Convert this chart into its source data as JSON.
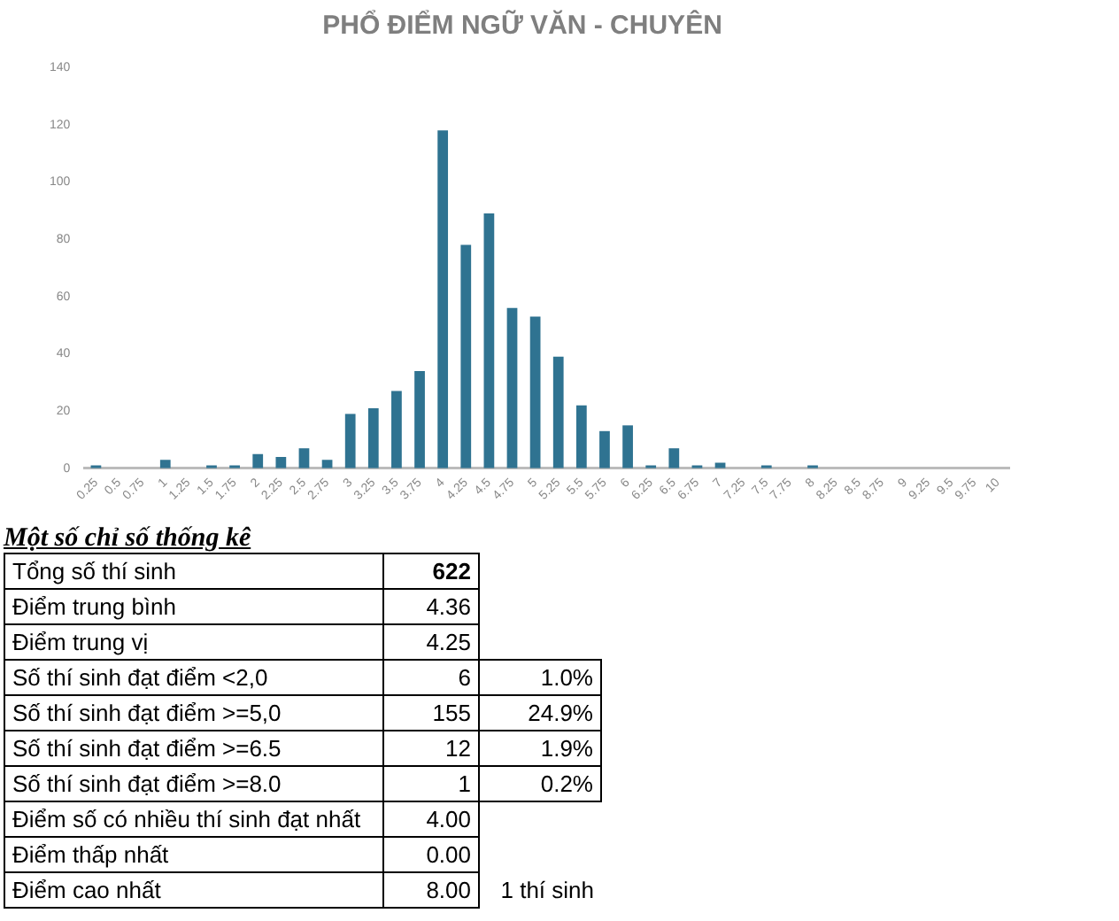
{
  "chart_data": [
    {
      "type": "bar",
      "title": "PHỔ ĐIỂM NGỮ VĂN - CHUYÊN",
      "categories": [
        "0.25",
        "0.5",
        "0.75",
        "1",
        "1.25",
        "1.5",
        "1.75",
        "2",
        "2.25",
        "2.5",
        "2.75",
        "3",
        "3.25",
        "3.5",
        "3.75",
        "4",
        "4.25",
        "4.5",
        "4.75",
        "5",
        "5.25",
        "5.5",
        "5.75",
        "6",
        "6.25",
        "6.5",
        "6.75",
        "7",
        "7.25",
        "7.5",
        "7.75",
        "8",
        "8.25",
        "8.5",
        "8.75",
        "9",
        "9.25",
        "9.5",
        "9.75",
        "10"
      ],
      "values": [
        1,
        0,
        0,
        3,
        0,
        1,
        1,
        5,
        4,
        7,
        3,
        19,
        21,
        27,
        34,
        118,
        78,
        89,
        56,
        53,
        39,
        22,
        13,
        15,
        1,
        7,
        1,
        2,
        0,
        1,
        0,
        1,
        0,
        0,
        0,
        0,
        0,
        0,
        0,
        0
      ],
      "color": "#2f7391",
      "ylim": [
        0,
        140
      ],
      "yticks": [
        0,
        20,
        40,
        60,
        80,
        100,
        120,
        140
      ],
      "grid": false,
      "legend": false
    },
    {
      "type": "other",
      "title": "Một số chỉ số thống kê",
      "categories": [
        "Tổng số thí sinh",
        "Điểm trung bình",
        "Điểm trung vị",
        "Số thí sinh đạt điểm <2,0",
        "Số thí sinh đạt điểm >=5,0",
        "Số thí sinh đạt điểm >=6.5",
        "Số thí sinh đạt điểm >=8.0",
        "Điểm số có nhiều thí sinh đạt nhất",
        "Điểm thấp nhất",
        "Điểm cao nhất"
      ],
      "cell_labels": [
        [
          "622",
          null
        ],
        [
          "4.36",
          null
        ],
        [
          "4.25",
          null
        ],
        [
          "6",
          "1.0%"
        ],
        [
          "155",
          "24.9%"
        ],
        [
          "12",
          "1.9%"
        ],
        [
          "1",
          "0.2%"
        ],
        [
          "4.00",
          null
        ],
        [
          "0.00",
          null
        ],
        [
          "8.00",
          "1 thí sinh"
        ]
      ]
    }
  ]
}
